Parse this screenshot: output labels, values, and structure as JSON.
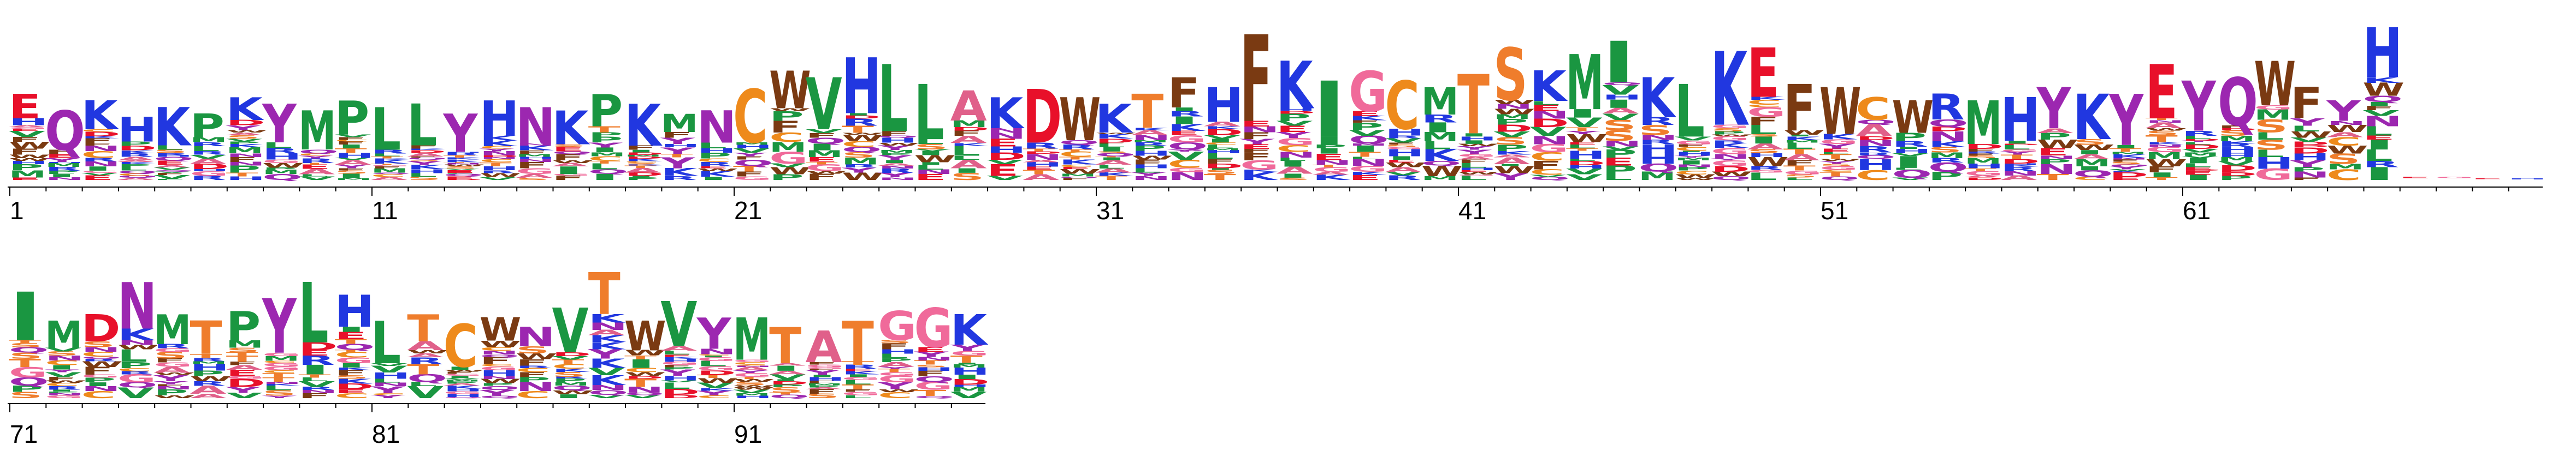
{
  "chart_data": {
    "type": "sequence-logo",
    "title": "",
    "xlabel": "",
    "ylabel": "",
    "positions_per_row": 70,
    "num_positions": 97,
    "tick_labels": [
      "1",
      "11",
      "21",
      "31",
      "41",
      "51",
      "61",
      "71",
      "81",
      "91"
    ],
    "tick_values": [
      1,
      11,
      21,
      31,
      41,
      51,
      61,
      71,
      81,
      91
    ],
    "column_heights": [
      0.52,
      0.42,
      0.48,
      0.38,
      0.44,
      0.4,
      0.5,
      0.46,
      0.42,
      0.48,
      0.44,
      0.46,
      0.4,
      0.48,
      0.44,
      0.42,
      0.52,
      0.46,
      0.4,
      0.42,
      0.55,
      0.66,
      0.62,
      0.74,
      0.7,
      0.58,
      0.54,
      0.5,
      0.55,
      0.5,
      0.46,
      0.52,
      0.62,
      0.56,
      0.88,
      0.72,
      0.6,
      0.66,
      0.6,
      0.56,
      0.64,
      0.8,
      0.66,
      0.76,
      0.84,
      0.62,
      0.58,
      0.78,
      0.8,
      0.58,
      0.56,
      0.5,
      0.48,
      0.52,
      0.48,
      0.5,
      0.56,
      0.52,
      0.52,
      0.7,
      0.6,
      0.62,
      0.72,
      0.56,
      0.48,
      0.92,
      0.02,
      0.02,
      0.01,
      0.01,
      0.66,
      0.48,
      0.52,
      0.72,
      0.52,
      0.48,
      0.54,
      0.62,
      0.72,
      0.64,
      0.48,
      0.52,
      0.46,
      0.5,
      0.44,
      0.56,
      0.78,
      0.48,
      0.6,
      0.5,
      0.5,
      0.44,
      0.42,
      0.48,
      0.54,
      0.56,
      0.52
    ],
    "top_letters": [
      "E",
      "Q",
      "K",
      "H",
      "K",
      "P",
      "K",
      "Y",
      "M",
      "P",
      "L",
      "L",
      "Y",
      "H",
      "N",
      "K",
      "P",
      "K",
      "M",
      "N",
      "C",
      "W",
      "V",
      "H",
      "L",
      "L",
      "A",
      "K",
      "D",
      "W",
      "K",
      "T",
      "F",
      "H",
      "F",
      "K",
      "I",
      "G",
      "C",
      "M",
      "T",
      "S",
      "K",
      "M",
      "I",
      "K",
      "L",
      "K",
      "E",
      "F",
      "W",
      "C",
      "W",
      "R",
      "M",
      "H",
      "Y",
      "K",
      "Y",
      "E",
      "Y",
      "Q",
      "W",
      "F",
      "Y",
      "H",
      "E",
      "G",
      "E",
      "H",
      "I",
      "M",
      "D",
      "N",
      "M",
      "T",
      "P",
      "Y",
      "L",
      "H",
      "L",
      "T",
      "C",
      "W",
      "N",
      "V",
      "T",
      "W",
      "V",
      "Y",
      "M",
      "T",
      "A",
      "T",
      "G",
      "G"
    ],
    "colors": {
      "hydrophobic": "#1a9641",
      "acidic": "#e8102a",
      "basic": "#2137e0",
      "aromatic": "#7a3a12",
      "amide": "#9c27b0",
      "polar": "#ef7d2c",
      "glycine": "#f06a9a",
      "cysteine": "#ee8a1b",
      "pink": "#e0608a"
    }
  }
}
